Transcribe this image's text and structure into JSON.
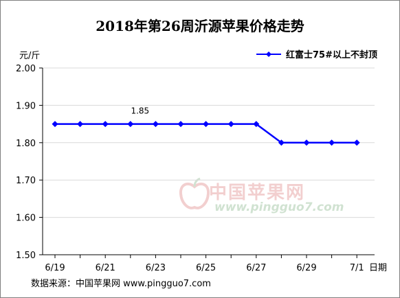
{
  "title": "2018年第26周沂源苹果价格走势",
  "unit_label": "元/斤",
  "x_axis_label": "日期",
  "source": "数据来源：中国苹果网 www.pingguo7.com",
  "watermark": {
    "name": "中国苹果网",
    "url": "www.pingguo7.com"
  },
  "chart_data": {
    "type": "line",
    "title": "2018年第26周沂源苹果价格走势",
    "ylabel": "元/斤",
    "xlabel": "日期",
    "ylim": [
      1.5,
      2.0
    ],
    "y_ticks": [
      "2.00",
      "1.90",
      "1.80",
      "1.70",
      "1.60",
      "1.50"
    ],
    "x_tick_labels": [
      "6/19",
      "6/21",
      "6/23",
      "6/25",
      "6/27",
      "6/29",
      "7/1"
    ],
    "x": [
      "6/19",
      "6/20",
      "6/21",
      "6/22",
      "6/23",
      "6/24",
      "6/25",
      "6/26",
      "6/27",
      "6/28",
      "6/29",
      "6/30",
      "7/1"
    ],
    "series": [
      {
        "name": "红富士75#以上不封顶",
        "color": "#0000ff",
        "values": [
          1.85,
          1.85,
          1.85,
          1.85,
          1.85,
          1.85,
          1.85,
          1.85,
          1.85,
          1.8,
          1.8,
          1.8,
          1.8
        ]
      }
    ],
    "data_labels": [
      {
        "x": "6/22",
        "text": "1.85"
      }
    ],
    "grid": "horizontal",
    "legend": "top-right"
  }
}
